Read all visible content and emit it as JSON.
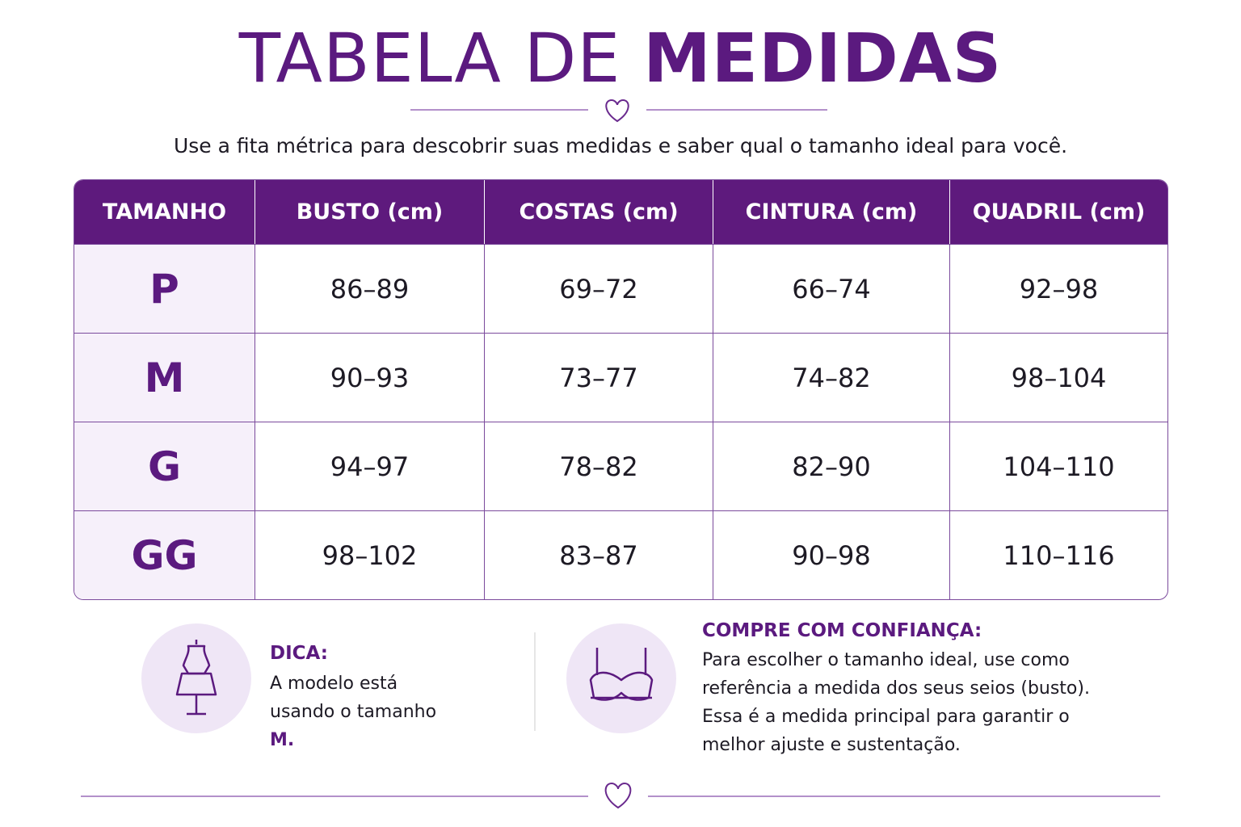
{
  "header": {
    "title_regular": "TABELA DE",
    "title_bold": "MEDIDAS",
    "subtitle": "Use a fita métrica para descobrir suas medidas e saber qual o tamanho ideal para você."
  },
  "table": {
    "columns": [
      "TAMANHO",
      "BUSTO (cm)",
      "COSTAS (cm)",
      "CINTURA (cm)",
      "QUADRIL (cm)"
    ],
    "rows": [
      [
        "P",
        "86–89",
        "69–72",
        "66–74",
        "92–98"
      ],
      [
        "M",
        "90–93",
        "73–77",
        "74–82",
        "98–104"
      ],
      [
        "G",
        "94–97",
        "78–82",
        "82–90",
        "104–110"
      ],
      [
        "GG",
        "98–102",
        "83–87",
        "90–98",
        "110–116"
      ]
    ]
  },
  "tip": {
    "title": "DICA:",
    "text": "A modelo está usando o tamanho",
    "highlight": "M."
  },
  "confidence": {
    "title": "COMPRE COM CONFIANÇA:",
    "text": "Para escolher o tamanho ideal, use como referência a medida dos seus seios (busto). Essa é a medida principal para garantir o melhor ajuste e sustentação."
  }
}
